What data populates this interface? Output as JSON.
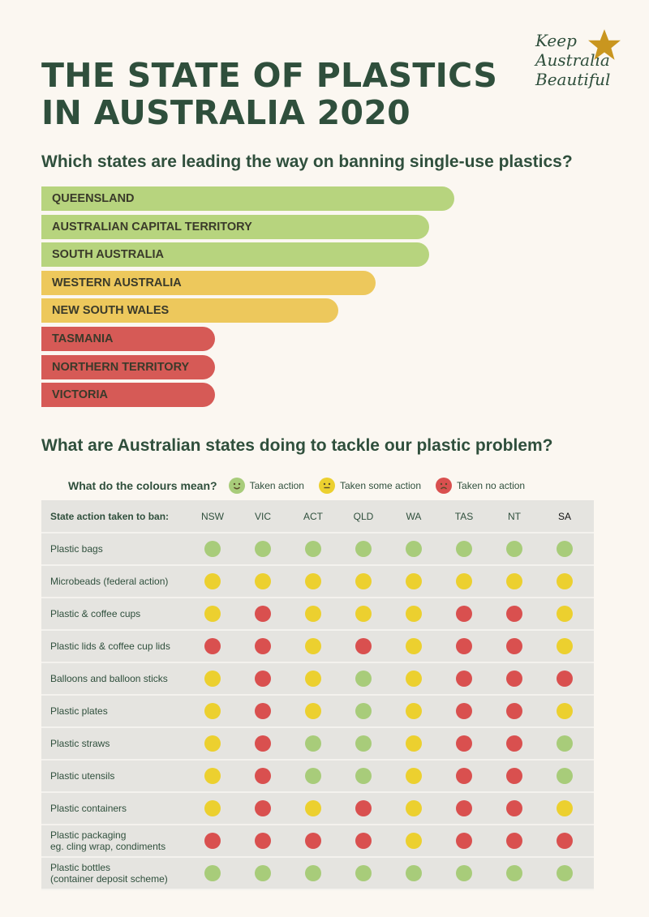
{
  "title": {
    "line1": "THE STATE OF PLASTICS",
    "line2": "IN AUSTRALIA 2020"
  },
  "logo": {
    "line1": "Keep",
    "line2": "Australia",
    "line3": "Beautiful",
    "star_color": "#c9961f"
  },
  "colors": {
    "green": "#b7d47e",
    "yellow": "#edc85c",
    "red": "#d65a56",
    "dot_green": "#a8cc7a",
    "dot_yellow": "#ecd02f",
    "dot_red": "#d9504f",
    "title_text": "#2f4f3c",
    "table_bg": "#e5e4e0"
  },
  "section1": {
    "question": "Which states are leading the way on banning single-use plastics?",
    "bars": [
      {
        "label": "QUEENSLAND",
        "level": 1.0,
        "status": "green"
      },
      {
        "label": "AUSTRALIAN CAPITAL TERRITORY",
        "level": 0.94,
        "status": "green"
      },
      {
        "label": "SOUTH AUSTRALIA",
        "level": 0.94,
        "status": "green"
      },
      {
        "label": "WESTERN AUSTRALIA",
        "level": 0.81,
        "status": "yellow"
      },
      {
        "label": "NEW SOUTH WALES",
        "level": 0.72,
        "status": "yellow"
      },
      {
        "label": "TASMANIA",
        "level": 0.42,
        "status": "red"
      },
      {
        "label": "NORTHERN TERRITORY",
        "level": 0.42,
        "status": "red"
      },
      {
        "label": "VICTORIA",
        "level": 0.42,
        "status": "red"
      }
    ]
  },
  "section2": {
    "question": "What are Australian states doing to tackle our plastic problem?",
    "legend": {
      "title": "What do the colours mean?",
      "items": [
        {
          "label": "Taken action",
          "status": "green",
          "icon": "smile-face-icon"
        },
        {
          "label": "Taken some action",
          "status": "yellow",
          "icon": "neutral-face-icon"
        },
        {
          "label": "Taken no action",
          "status": "red",
          "icon": "sad-face-icon"
        }
      ]
    },
    "table": {
      "header_label": "State action taken to ban:",
      "columns": [
        "NSW",
        "VIC",
        "ACT",
        "QLD",
        "WA",
        "TAS",
        "NT",
        "SA"
      ],
      "rows": [
        {
          "label": "Plastic bags",
          "sublabel": "",
          "values": [
            "g",
            "g",
            "g",
            "g",
            "g",
            "g",
            "g",
            "g"
          ]
        },
        {
          "label": "Microbeads (federal action)",
          "sublabel": "",
          "values": [
            "y",
            "y",
            "y",
            "y",
            "y",
            "y",
            "y",
            "y"
          ]
        },
        {
          "label": "Plastic & coffee cups",
          "sublabel": "",
          "values": [
            "y",
            "r",
            "y",
            "y",
            "y",
            "r",
            "r",
            "y"
          ]
        },
        {
          "label": "Plastic lids & coffee cup lids",
          "sublabel": "",
          "values": [
            "r",
            "r",
            "y",
            "r",
            "y",
            "r",
            "r",
            "y"
          ]
        },
        {
          "label": "Balloons and balloon sticks",
          "sublabel": "",
          "values": [
            "y",
            "r",
            "y",
            "g",
            "y",
            "r",
            "r",
            "r"
          ]
        },
        {
          "label": "Plastic plates",
          "sublabel": "",
          "values": [
            "y",
            "r",
            "y",
            "g",
            "y",
            "r",
            "r",
            "y"
          ]
        },
        {
          "label": "Plastic straws",
          "sublabel": "",
          "values": [
            "y",
            "r",
            "g",
            "g",
            "y",
            "r",
            "r",
            "g"
          ]
        },
        {
          "label": "Plastic utensils",
          "sublabel": "",
          "values": [
            "y",
            "r",
            "g",
            "g",
            "y",
            "r",
            "r",
            "g"
          ]
        },
        {
          "label": "Plastic containers",
          "sublabel": "",
          "values": [
            "y",
            "r",
            "y",
            "r",
            "y",
            "r",
            "r",
            "y"
          ]
        },
        {
          "label": "Plastic packaging",
          "sublabel": "eg. cling wrap, condiments",
          "values": [
            "r",
            "r",
            "r",
            "r",
            "y",
            "r",
            "r",
            "r"
          ]
        },
        {
          "label": "Plastic bottles",
          "sublabel": "(container deposit scheme)",
          "values": [
            "g",
            "g",
            "g",
            "g",
            "g",
            "g",
            "g",
            "g"
          ]
        }
      ]
    }
  }
}
